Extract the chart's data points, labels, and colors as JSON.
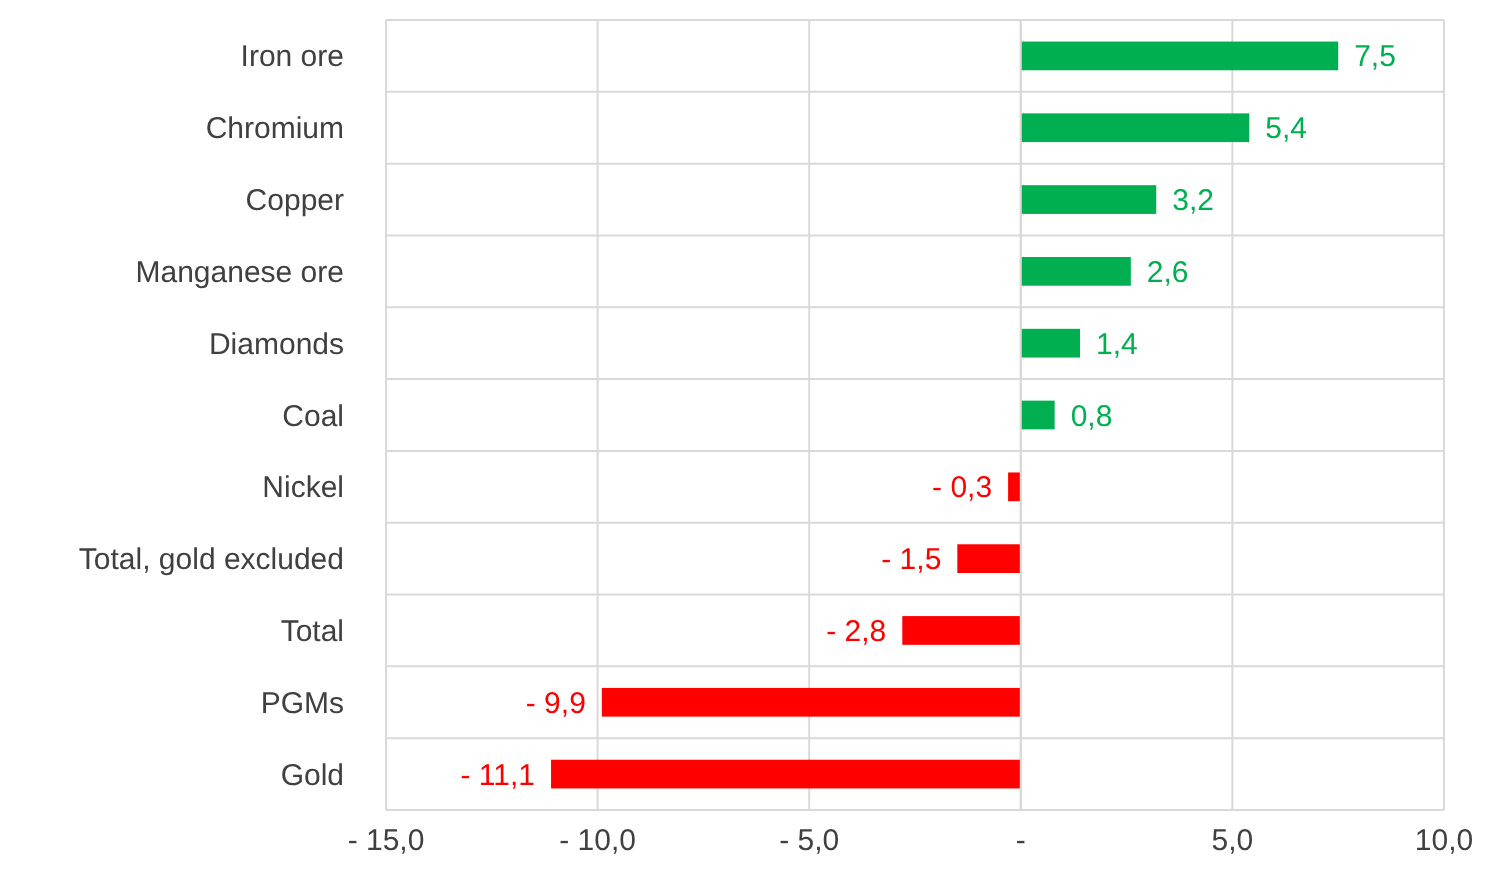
{
  "chart_data": {
    "type": "bar",
    "orientation": "horizontal",
    "categories": [
      "Iron ore",
      "Chromium",
      "Copper",
      "Manganese ore",
      "Diamonds",
      "Coal",
      "Nickel",
      "Total, gold excluded",
      "Total",
      "PGMs",
      "Gold"
    ],
    "values": [
      7.5,
      5.4,
      3.2,
      2.6,
      1.4,
      0.8,
      -0.3,
      -1.5,
      -2.8,
      -9.9,
      -11.1
    ],
    "colors": [
      "#00b050",
      "#00b050",
      "#00b050",
      "#00b050",
      "#00b050",
      "#00b050",
      "#ff0000",
      "#ff0000",
      "#ff0000",
      "#ff0000",
      "#ff0000"
    ],
    "value_labels": [
      "7,5",
      "5,4",
      "3,2",
      "2,6",
      "1,4",
      "0,8",
      "- 0,3",
      "- 1,5",
      "- 2,8",
      "- 9,9",
      "- 11,1"
    ],
    "xlim": [
      -15,
      10
    ],
    "xticks": [
      {
        "value": -15,
        "label": "- 15,0"
      },
      {
        "value": -10,
        "label": "- 10,0"
      },
      {
        "value": -5,
        "label": "- 5,0"
      },
      {
        "value": 0,
        "label": "-"
      },
      {
        "value": 5,
        "label": "5,0"
      },
      {
        "value": 10,
        "label": "10,0"
      }
    ],
    "grid": true
  }
}
